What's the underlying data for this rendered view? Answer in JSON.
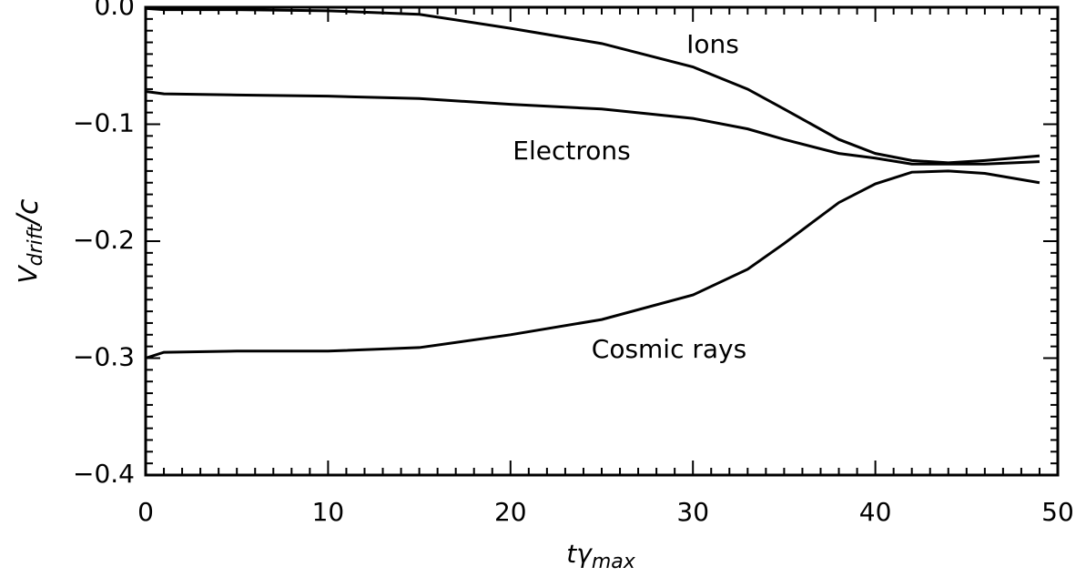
{
  "chart_data": {
    "type": "line",
    "xlabel": [
      "tγ",
      "max"
    ],
    "ylabel": [
      "V",
      "drift",
      "/c"
    ],
    "x": [
      0,
      1,
      5,
      10,
      15,
      20,
      25,
      30,
      33,
      35,
      38,
      40,
      42,
      44,
      46,
      49
    ],
    "series": [
      {
        "name": "Ions",
        "color": "#000000",
        "values": [
          -0.001,
          -0.002,
          -0.002,
          -0.003,
          -0.006,
          -0.018,
          -0.031,
          -0.051,
          -0.07,
          -0.087,
          -0.113,
          -0.125,
          -0.131,
          -0.133,
          -0.131,
          -0.127
        ]
      },
      {
        "name": "Electrons",
        "color": "#000000",
        "values": [
          -0.072,
          -0.074,
          -0.075,
          -0.076,
          -0.078,
          -0.083,
          -0.087,
          -0.095,
          -0.104,
          -0.113,
          -0.125,
          -0.129,
          -0.134,
          -0.134,
          -0.134,
          -0.132
        ]
      },
      {
        "name": "Cosmic rays",
        "color": "#000000",
        "values": [
          -0.3,
          -0.295,
          -0.294,
          -0.294,
          -0.291,
          -0.28,
          -0.267,
          -0.246,
          -0.224,
          -0.202,
          -0.167,
          -0.151,
          -0.141,
          -0.14,
          -0.142,
          -0.15
        ]
      }
    ],
    "xlim": [
      0,
      50
    ],
    "xticks": [
      0,
      10,
      20,
      30,
      40,
      50
    ],
    "ylim": [
      -0.4,
      0.0
    ],
    "yticks": [
      {
        "value": -0.4,
        "label": "−0.4"
      },
      {
        "value": -0.3,
        "label": "−0.3"
      },
      {
        "value": -0.2,
        "label": "−0.2"
      },
      {
        "value": -0.1,
        "label": "−0.1"
      },
      {
        "value": 0,
        "label": "0.0"
      }
    ],
    "grid": false
  }
}
